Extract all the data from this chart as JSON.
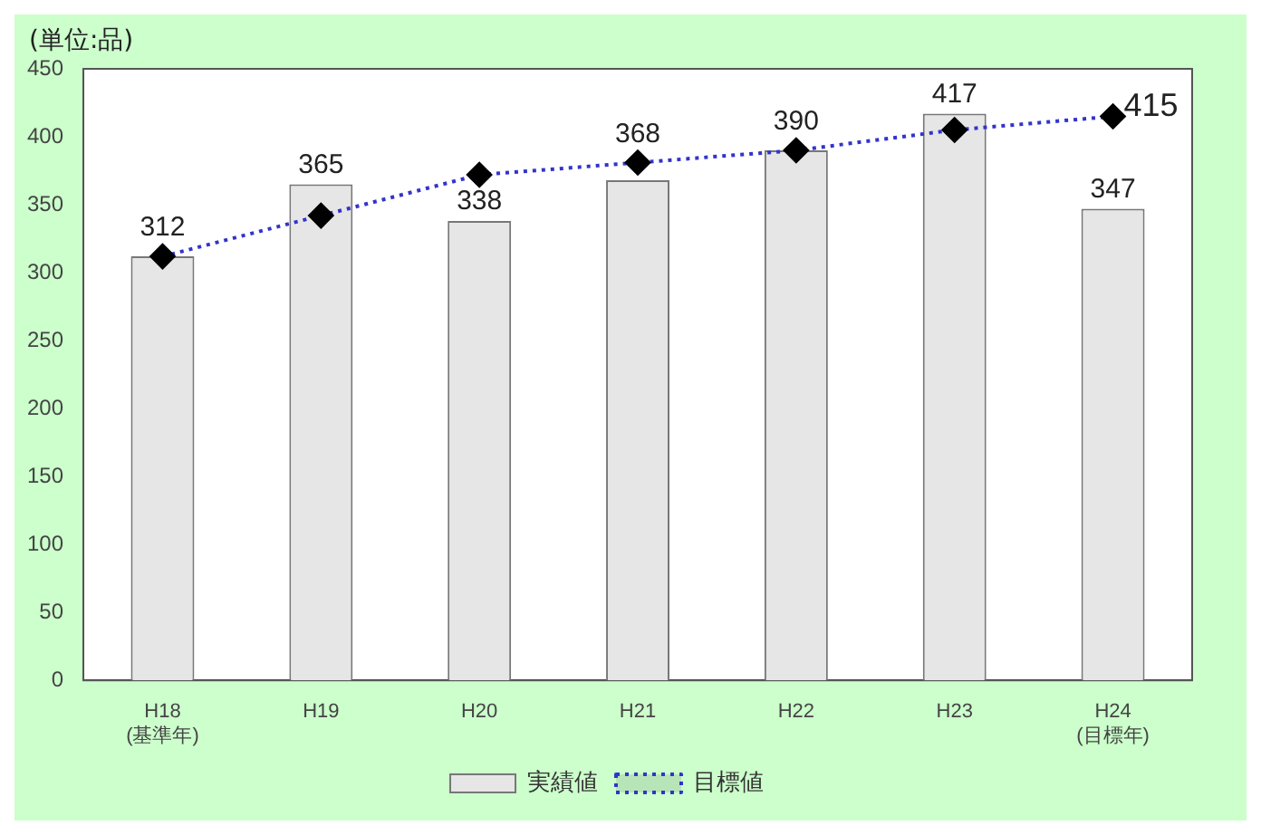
{
  "chart_data": {
    "type": "bar",
    "ylabel": "(単位:品)",
    "categories": [
      "H18\n(基準年)",
      "H19",
      "H20",
      "H21",
      "H22",
      "H23",
      "H24\n(目標年)"
    ],
    "series": [
      {
        "name": "実績値",
        "color": "#e6e6e6",
        "values": [
          312,
          365,
          338,
          368,
          390,
          417,
          347
        ],
        "value_labels": [
          "312",
          "365",
          "338",
          "368",
          "390",
          "417",
          "347"
        ]
      },
      {
        "name": "目標値",
        "type": "line",
        "color": "#3333cc",
        "line_style": "dotted",
        "marker": "diamond",
        "values": [
          312,
          342,
          372,
          381,
          390,
          405,
          415
        ],
        "value_labels": [
          null,
          null,
          null,
          null,
          null,
          null,
          "415"
        ]
      }
    ],
    "ylim": [
      0,
      450
    ],
    "yticks": [
      0,
      50,
      100,
      150,
      200,
      250,
      300,
      350,
      400,
      450
    ],
    "grid": false,
    "legend": "bottom"
  }
}
